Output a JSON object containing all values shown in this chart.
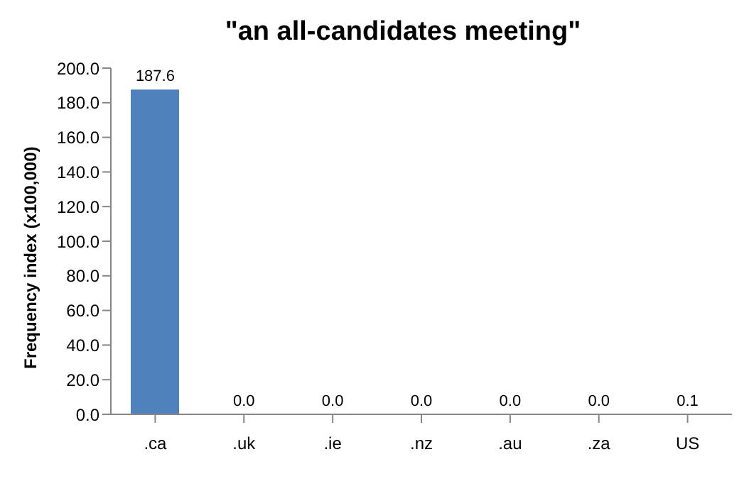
{
  "chart_data": {
    "type": "bar",
    "title": "\"an all-candidates meeting\"",
    "ylabel": "Frequency index (x100,000)",
    "categories": [
      ".ca",
      ".uk",
      ".ie",
      ".nz",
      ".au",
      ".za",
      "US"
    ],
    "values": [
      187.6,
      0.0,
      0.0,
      0.0,
      0.0,
      0.0,
      0.1
    ],
    "value_labels": [
      "187.6",
      "0.0",
      "0.0",
      "0.0",
      "0.0",
      "0.0",
      "0.1"
    ],
    "color": "#4f81bd",
    "ylim": [
      0,
      200
    ],
    "yticks": [
      {
        "value": 0,
        "label": "0.0"
      },
      {
        "value": 20,
        "label": "20.0"
      },
      {
        "value": 40,
        "label": "40.0"
      },
      {
        "value": 60,
        "label": "60.0"
      },
      {
        "value": 80,
        "label": "80.0"
      },
      {
        "value": 100,
        "label": "100.0"
      },
      {
        "value": 120,
        "label": "120.0"
      },
      {
        "value": 140,
        "label": "140.0"
      },
      {
        "value": 160,
        "label": "160.0"
      },
      {
        "value": 180,
        "label": "180.0"
      },
      {
        "value": 200,
        "label": "200.0"
      }
    ],
    "grid": false,
    "legend": false
  }
}
